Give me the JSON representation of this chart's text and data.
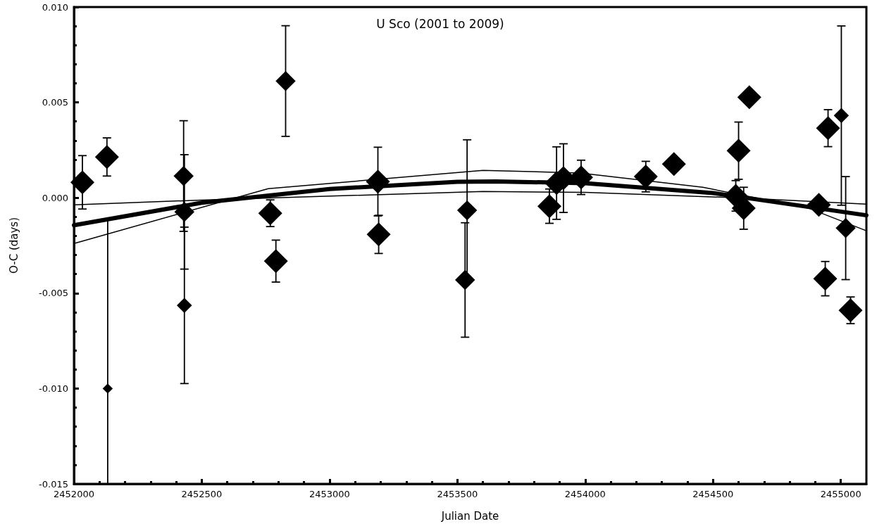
{
  "chart_data": {
    "type": "bubble",
    "title": "U Sco (2001 to 2009)",
    "xlabel": "Julian Date",
    "ylabel": "O-C (days)",
    "xlim": [
      2452000,
      2455100
    ],
    "xticks": [
      2452000,
      2452500,
      2453000,
      2453500,
      2454000,
      2454500,
      2455000
    ],
    "ylim": [
      -0.015,
      0.01
    ],
    "yticks": [
      {
        "value": -0.015,
        "label": "-0.015"
      },
      {
        "value": -0.01,
        "label": "-0.010"
      },
      {
        "value": -0.005,
        "label": "-0.005"
      },
      {
        "value": 0,
        "label": "0.000"
      },
      {
        "value": 0.005,
        "label": "0.005"
      },
      {
        "value": 0.01,
        "label": "0.010"
      }
    ],
    "grid": false,
    "series": [
      {
        "color": "#000000",
        "marker": "diamond",
        "x": [
          2452033,
          2452129,
          2452132,
          2452429,
          2452432,
          2452432,
          2452768,
          2452790,
          2452828,
          2453189,
          2453192,
          2453538,
          2453530,
          2453860,
          2453888,
          2453915,
          2453984,
          2454237,
          2454347,
          2454642,
          2454600,
          2454589,
          2454620,
          2454914,
          2454950,
          2455002,
          2455019,
          2454939,
          2455038
        ],
        "values": [
          0.00081,
          0.00214,
          -0.01,
          0.00114,
          -0.00074,
          -0.00564,
          -0.00081,
          -0.00332,
          0.00612,
          0.00085,
          -0.00192,
          -0.00066,
          -0.00431,
          -0.00044,
          0.00077,
          0.00103,
          0.00107,
          0.00111,
          0.00177,
          0.00527,
          0.00247,
          0.0001,
          -0.00055,
          -0.00037,
          0.00365,
          0.00431,
          -0.00159,
          -0.00424,
          -0.0059
        ],
        "sizes": [
          1,
          1,
          0.18,
          0.7,
          0.7,
          0.4,
          1,
          1,
          0.7,
          1,
          1,
          0.7,
          0.7,
          1,
          1,
          1,
          1,
          1,
          1,
          1,
          1,
          1,
          1,
          1,
          1,
          0.4,
          0.7,
          1,
          1
        ],
        "errors": [
          0.0014,
          0.001,
          [
            -0.015,
            -0.0011
          ],
          0.0029,
          0.003,
          0.0041,
          0.0007,
          0.0011,
          0.0029,
          0.0018,
          0.001,
          0.0037,
          0.003,
          0.0009,
          0.0019,
          0.0018,
          0.0009,
          0.0008,
          null,
          null,
          0.0015,
          0.0008,
          0.0011,
          null,
          0.00097,
          0.0047,
          0.0027,
          0.0009,
          0.0007
        ]
      },
      {
        "type": "line",
        "marker": "none",
        "color": "#000000",
        "x": [
          2452000,
          2452500,
          2453000,
          2453500,
          2453650,
          2454000,
          2454500,
          2455100
        ],
        "values": [
          -0.00144,
          -0.00026,
          0.00046,
          0.00084,
          0.00086,
          0.00076,
          0.00025,
          -0.00092
        ]
      },
      {
        "type": "line",
        "marker": "none",
        "color": "#000000",
        "x": [
          2452000,
          2452760,
          2453600,
          2453980,
          2454460,
          2454875,
          2455100
        ],
        "values": [
          -0.0024,
          0.00048,
          0.00144,
          0.0013,
          0.00055,
          -0.00055,
          -0.00173
        ]
      },
      {
        "type": "line",
        "marker": "none",
        "color": "#000000",
        "x": [
          2452000,
          2452500,
          2453600,
          2454000,
          2454600,
          2455100
        ],
        "values": [
          -0.00037,
          -0.00012,
          0.00033,
          0.00028,
          0.0,
          -0.00033
        ]
      }
    ]
  }
}
